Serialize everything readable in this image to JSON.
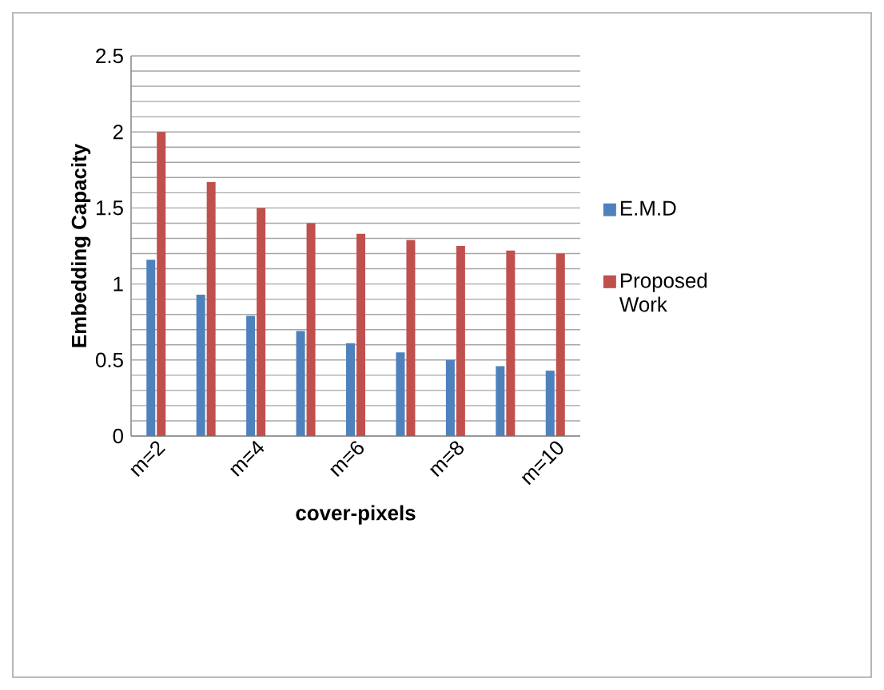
{
  "chart_data": {
    "type": "bar",
    "xlabel": "cover-pixels",
    "ylabel": "Embedding Capacity",
    "categories": [
      "m=2",
      null,
      "m=4",
      null,
      "m=6",
      null,
      "m=8",
      null,
      "m=10"
    ],
    "series": [
      {
        "name": "E.M.D",
        "color": "#4f81bd",
        "values": [
          1.16,
          0.93,
          0.79,
          0.69,
          0.61,
          0.55,
          0.5,
          0.46,
          0.43
        ]
      },
      {
        "name": "Proposed Work",
        "color": "#c0504d",
        "values": [
          2.0,
          1.67,
          1.5,
          1.4,
          1.33,
          1.29,
          1.25,
          1.22,
          1.2
        ]
      }
    ],
    "ylim": [
      0,
      2.5
    ],
    "yticks": [
      0,
      {
        "value": 0.1,
        "label": null
      },
      {
        "value": 0.2,
        "label": null
      },
      {
        "value": 0.3,
        "label": null
      },
      {
        "value": 0.4,
        "label": null
      },
      0.5,
      {
        "value": 0.6,
        "label": null
      },
      {
        "value": 0.7,
        "label": null
      },
      {
        "value": 0.8,
        "label": null
      },
      {
        "value": 0.9,
        "label": null
      },
      1,
      {
        "value": 1.1,
        "label": null
      },
      {
        "value": 1.2,
        "label": null
      },
      {
        "value": 1.3,
        "label": null
      },
      {
        "value": 1.4,
        "label": null
      },
      1.5,
      {
        "value": 1.6,
        "label": null
      },
      {
        "value": 1.7,
        "label": null
      },
      {
        "value": 1.8,
        "label": null
      },
      {
        "value": 1.9,
        "label": null
      },
      2,
      {
        "value": 2.1,
        "label": null
      },
      {
        "value": 2.2,
        "label": null
      },
      {
        "value": 2.3,
        "label": null
      },
      {
        "value": 2.4,
        "label": null
      },
      2.5
    ],
    "grid": "y",
    "legend": "right"
  }
}
